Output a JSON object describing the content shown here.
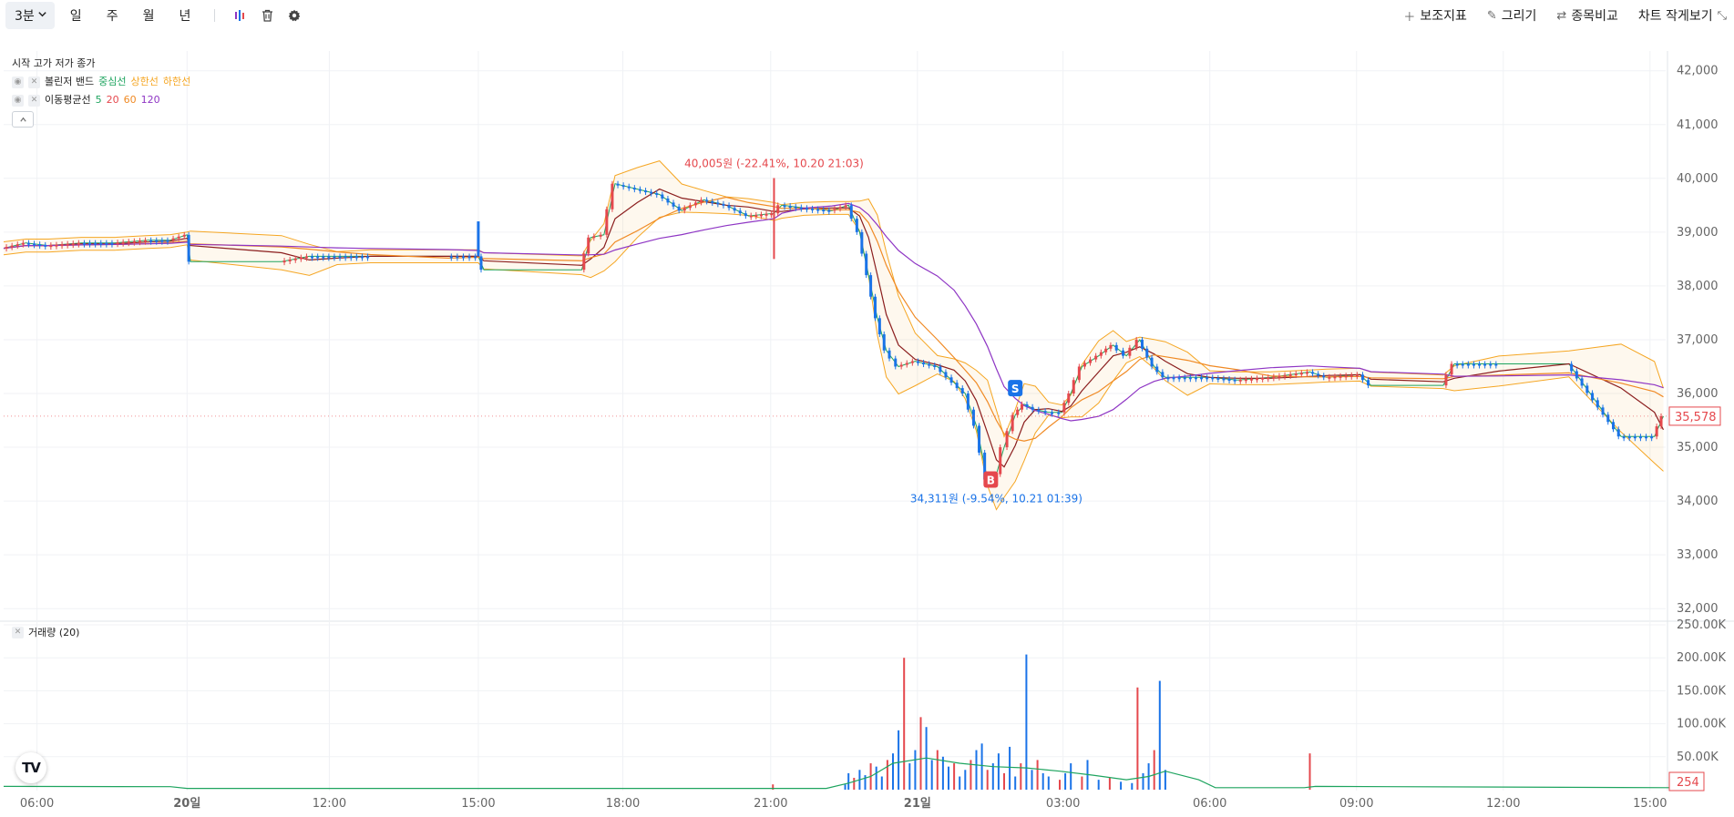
{
  "toolbar": {
    "interval": "3분",
    "periods": [
      "일",
      "주",
      "월",
      "년"
    ],
    "indicators_label": "보조지표",
    "draw_label": "그리기",
    "compare_label": "종목비교",
    "small_chart_label": "차트 작게보기"
  },
  "legend": {
    "ohlc_label": "시작 고가 저가 종가",
    "bollinger": {
      "name": "볼린저 밴드",
      "middle": "중심선",
      "upper": "상한선",
      "lower": "하한선",
      "colors": {
        "middle": "#1ea45f",
        "upper": "#f5a623",
        "lower": "#f5a623"
      }
    },
    "ma": {
      "name": "이동평균선",
      "periods": [
        "5",
        "20",
        "60",
        "120"
      ],
      "colors": [
        "#1ea45f",
        "#e5484d",
        "#f08a24",
        "#8e35c4"
      ]
    }
  },
  "volume_legend": "거래량 (20)",
  "chart_data": {
    "type": "candlestick",
    "price_axis": {
      "ticks": [
        "42,000",
        "41,000",
        "40,000",
        "39,000",
        "38,000",
        "37,000",
        "36,000",
        "35,000",
        "34,000",
        "33,000",
        "32,000"
      ],
      "range": [
        31800,
        42300
      ]
    },
    "volume_axis": {
      "ticks": [
        "250.00K",
        "200.00K",
        "150.00K",
        "100.00K",
        "50.00K"
      ],
      "range": [
        0,
        250000
      ]
    },
    "time_axis": {
      "ticks": [
        "06:00",
        "20일",
        "12:00",
        "15:00",
        "18:00",
        "21:00",
        "21일",
        "03:00",
        "06:00",
        "09:00",
        "12:00",
        "15:00"
      ]
    },
    "last_price": "35,578",
    "last_volume": "254",
    "max_annotation": "40,005원 (-22.41%, 10.20 21:03)",
    "min_annotation": "34,311원 (-9.54%, 10.21 01:39)",
    "sell_marker": "S",
    "buy_marker": "B",
    "colors": {
      "up": "#e5484d",
      "down": "#1a73e8",
      "grid": "#f0f2f5",
      "axis_text": "#666666"
    },
    "price_path": [
      [
        0,
        38700
      ],
      [
        20,
        38800
      ],
      [
        40,
        38750
      ],
      [
        70,
        38800
      ],
      [
        100,
        38800
      ],
      [
        130,
        38850
      ],
      [
        150,
        38850
      ],
      [
        165,
        38950
      ],
      [
        168,
        38450
      ],
      [
        250,
        38450
      ],
      [
        275,
        38550
      ],
      [
        300,
        38550
      ],
      [
        330,
        38550
      ],
      [
        400,
        38550
      ],
      [
        427,
        38550
      ],
      [
        432,
        38300
      ],
      [
        520,
        38300
      ],
      [
        528,
        38900
      ],
      [
        540,
        38950
      ],
      [
        550,
        39900
      ],
      [
        570,
        39800
      ],
      [
        590,
        39700
      ],
      [
        610,
        39400
      ],
      [
        630,
        39600
      ],
      [
        650,
        39500
      ],
      [
        670,
        39300
      ],
      [
        693,
        39350
      ],
      [
        700,
        39500
      ],
      [
        720,
        39450
      ],
      [
        745,
        39400
      ],
      [
        760,
        39500
      ],
      [
        770,
        39000
      ],
      [
        778,
        38200
      ],
      [
        786,
        37400
      ],
      [
        794,
        36800
      ],
      [
        805,
        36500
      ],
      [
        820,
        36600
      ],
      [
        840,
        36500
      ],
      [
        855,
        36200
      ],
      [
        865,
        36000
      ],
      [
        875,
        35400
      ],
      [
        885,
        34400
      ],
      [
        893,
        34500
      ],
      [
        900,
        35000
      ],
      [
        910,
        35600
      ],
      [
        918,
        35800
      ],
      [
        928,
        35700
      ],
      [
        940,
        35650
      ],
      [
        952,
        35650
      ],
      [
        960,
        36000
      ],
      [
        970,
        36500
      ],
      [
        985,
        36700
      ],
      [
        998,
        36900
      ],
      [
        1010,
        36700
      ],
      [
        1022,
        37000
      ],
      [
        1035,
        36500
      ],
      [
        1045,
        36300
      ],
      [
        1065,
        36300
      ],
      [
        1085,
        36300
      ],
      [
        1110,
        36250
      ],
      [
        1140,
        36300
      ],
      [
        1175,
        36400
      ],
      [
        1190,
        36300
      ],
      [
        1220,
        36350
      ],
      [
        1230,
        36150
      ],
      [
        1295,
        36150
      ],
      [
        1305,
        36550
      ],
      [
        1345,
        36550
      ],
      [
        1408,
        36550
      ],
      [
        1455,
        35200
      ],
      [
        1485,
        35200
      ],
      [
        1493,
        35578
      ]
    ],
    "volume_values": [
      [
        692,
        8000
      ],
      [
        757,
        8000
      ],
      [
        760,
        25000
      ],
      [
        765,
        18000
      ],
      [
        770,
        30000
      ],
      [
        775,
        22000
      ],
      [
        780,
        40000
      ],
      [
        785,
        35000
      ],
      [
        790,
        20000
      ],
      [
        795,
        45000
      ],
      [
        800,
        55000
      ],
      [
        805,
        90000
      ],
      [
        810,
        200000
      ],
      [
        815,
        40000
      ],
      [
        820,
        60000
      ],
      [
        825,
        110000
      ],
      [
        830,
        95000
      ],
      [
        835,
        45000
      ],
      [
        840,
        60000
      ],
      [
        845,
        50000
      ],
      [
        850,
        35000
      ],
      [
        855,
        40000
      ],
      [
        860,
        20000
      ],
      [
        865,
        30000
      ],
      [
        870,
        45000
      ],
      [
        875,
        60000
      ],
      [
        880,
        70000
      ],
      [
        885,
        30000
      ],
      [
        890,
        40000
      ],
      [
        895,
        55000
      ],
      [
        900,
        25000
      ],
      [
        905,
        65000
      ],
      [
        910,
        20000
      ],
      [
        915,
        40000
      ],
      [
        920,
        205000
      ],
      [
        925,
        30000
      ],
      [
        930,
        45000
      ],
      [
        935,
        25000
      ],
      [
        940,
        20000
      ],
      [
        950,
        15000
      ],
      [
        955,
        25000
      ],
      [
        960,
        40000
      ],
      [
        970,
        20000
      ],
      [
        975,
        45000
      ],
      [
        985,
        15000
      ],
      [
        995,
        18000
      ],
      [
        1005,
        12000
      ],
      [
        1015,
        10000
      ],
      [
        1020,
        155000
      ],
      [
        1025,
        25000
      ],
      [
        1030,
        40000
      ],
      [
        1035,
        60000
      ],
      [
        1040,
        165000
      ],
      [
        1045,
        30000
      ],
      [
        1175,
        55000
      ]
    ],
    "volume_ma": [
      [
        0,
        5000
      ],
      [
        150,
        4500
      ],
      [
        165,
        2000
      ],
      [
        740,
        2000
      ],
      [
        760,
        10000
      ],
      [
        780,
        20000
      ],
      [
        800,
        40000
      ],
      [
        830,
        48000
      ],
      [
        860,
        40000
      ],
      [
        890,
        35000
      ],
      [
        920,
        33000
      ],
      [
        950,
        28000
      ],
      [
        980,
        22000
      ],
      [
        1010,
        15000
      ],
      [
        1030,
        20000
      ],
      [
        1045,
        28000
      ],
      [
        1075,
        15000
      ],
      [
        1090,
        3000
      ],
      [
        1170,
        3000
      ],
      [
        1180,
        5000
      ],
      [
        1500,
        3000
      ]
    ]
  }
}
